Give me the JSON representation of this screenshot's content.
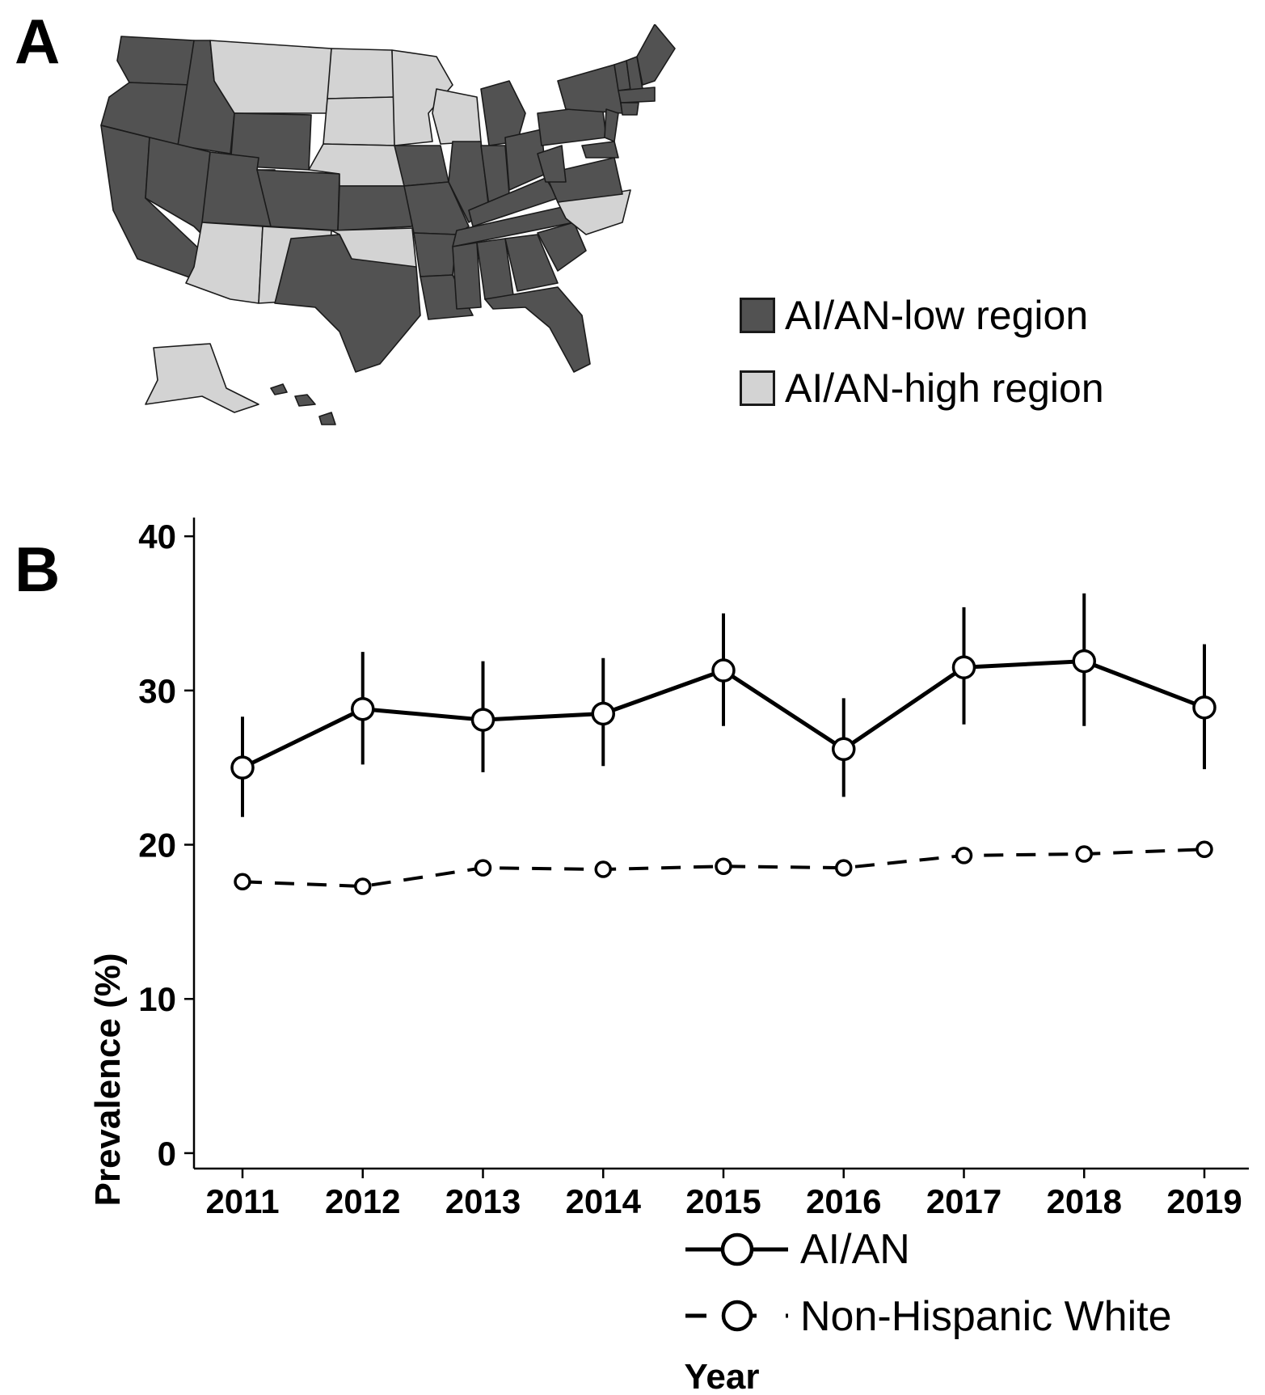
{
  "panels": {
    "a_label": "A",
    "b_label": "B"
  },
  "map": {
    "colors": {
      "low": "#525252",
      "high": "#d3d3d3",
      "border": "#1a1a1a"
    },
    "legend": [
      {
        "label": "AI/AN-low region",
        "region": "low"
      },
      {
        "label": "AI/AN-high region",
        "region": "high"
      }
    ],
    "high_states": [
      "MT",
      "ND",
      "SD",
      "NE",
      "MN",
      "WI",
      "AZ",
      "NM",
      "OK",
      "NC",
      "AK"
    ]
  },
  "chart_data": {
    "type": "line",
    "xlabel": "Year",
    "ylabel": "Prevalence (%)",
    "x": [
      2011,
      2012,
      2013,
      2014,
      2015,
      2016,
      2017,
      2018,
      2019
    ],
    "ylim": [
      -1,
      42
    ],
    "yticks": [
      0,
      10,
      20,
      30,
      40
    ],
    "grid": false,
    "legend_position": "bottom-right",
    "series": [
      {
        "name": "AI/AN",
        "style": "solid",
        "values": [
          25.0,
          28.8,
          28.1,
          28.5,
          31.3,
          26.2,
          31.5,
          31.9,
          28.9
        ],
        "lower": [
          21.8,
          25.2,
          24.7,
          25.1,
          27.7,
          23.1,
          27.8,
          27.7,
          24.9
        ],
        "upper": [
          28.3,
          32.5,
          31.9,
          32.1,
          35.0,
          29.5,
          35.4,
          36.3,
          33.0
        ]
      },
      {
        "name": "Non-Hispanic White",
        "style": "dashed",
        "values": [
          17.6,
          17.3,
          18.5,
          18.4,
          18.6,
          18.5,
          19.3,
          19.4,
          19.7
        ]
      }
    ]
  }
}
